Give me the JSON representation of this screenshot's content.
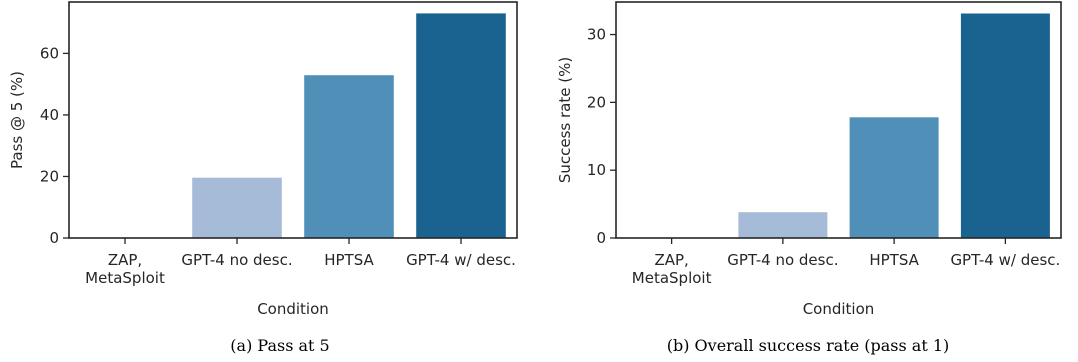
{
  "chart_data": [
    {
      "type": "bar",
      "categories": [
        [
          "ZAP,",
          "MetaSploit"
        ],
        [
          "GPT-4 no desc."
        ],
        [
          "HPTSA"
        ],
        [
          "GPT-4 w/ desc."
        ]
      ],
      "values": [
        0,
        19.6,
        52.9,
        73.0
      ],
      "colors": [
        "#c9d4e8",
        "#a6bbd8",
        "#5090b8",
        "#1a6290"
      ],
      "xlabel": "Condition",
      "ylabel": "Pass @ 5 (%)",
      "ylim": [
        0,
        76.7
      ],
      "yticks": [
        0,
        20,
        40,
        60
      ],
      "grid": false,
      "caption": "(a) Pass at 5"
    },
    {
      "type": "bar",
      "categories": [
        [
          "ZAP,",
          "MetaSploit"
        ],
        [
          "GPT-4 no desc."
        ],
        [
          "HPTSA"
        ],
        [
          "GPT-4 w/ desc."
        ]
      ],
      "values": [
        0,
        3.8,
        17.8,
        33.1
      ],
      "colors": [
        "#c9d4e8",
        "#a6bbd8",
        "#5090b8",
        "#1a6290"
      ],
      "xlabel": "Condition",
      "ylabel": "Success rate (%)",
      "ylim": [
        0,
        34.8
      ],
      "yticks": [
        0,
        10,
        20,
        30
      ],
      "grid": false,
      "caption": "(b) Overall success rate (pass at 1)"
    }
  ]
}
